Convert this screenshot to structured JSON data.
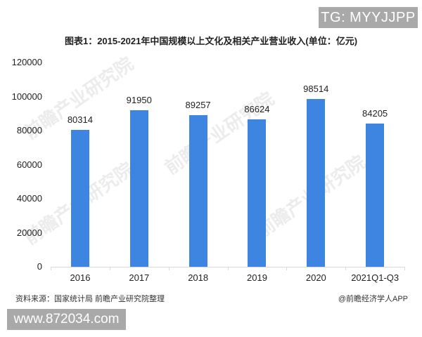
{
  "watermark_top": "TG: MYYJJPP",
  "watermark_bottom": "www.872034.com",
  "background_watermark": "前瞻产业研究院",
  "footer": {
    "source": "资料来源：国家统计局 前瞻产业研究院整理",
    "credit": "@前瞻经济学人APP"
  },
  "colors": {
    "bar": "#3d85e0",
    "axis": "#d9d9d9"
  },
  "chart_data": {
    "type": "bar",
    "title": "图表1：2015-2021年中国规模以上文化及相关产业营业收入(单位：亿元)",
    "xlabel": "",
    "ylabel": "",
    "categories": [
      "2016",
      "2017",
      "2018",
      "2019",
      "2020",
      "2021Q1-Q3"
    ],
    "values": [
      80314,
      91950,
      89257,
      86624,
      98514,
      84205
    ],
    "value_labels": [
      "80314",
      "91950",
      "89257",
      "86624",
      "98514",
      "84205"
    ],
    "ylim": [
      0,
      120000
    ],
    "yticks": [
      "0",
      "20000",
      "40000",
      "60000",
      "80000",
      "100000",
      "120000"
    ],
    "grid": false,
    "legend": null
  }
}
